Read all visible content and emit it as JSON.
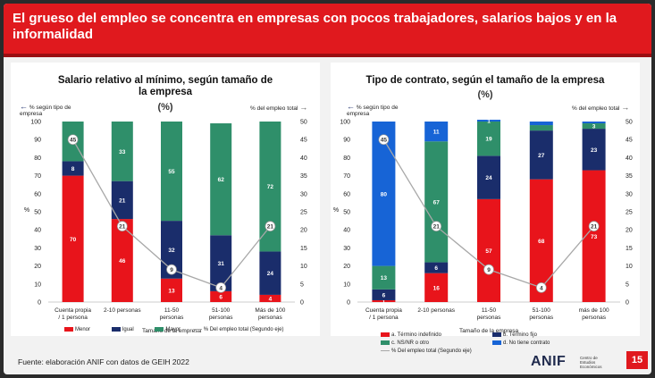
{
  "header": {
    "title": "El grueso del empleo se concentra en empresas con pocos trabajadores, salarios bajos y en la informalidad"
  },
  "source": "Fuente: elaboración ANIF con datos de GEIH 2022",
  "logo": {
    "name": "ANIF",
    "sub": "Centro de Estudios Económicos"
  },
  "page_number": "15",
  "colors": {
    "red": "#e8141b",
    "navy": "#1a2d6b",
    "green": "#2f8f6a",
    "blue": "#1764d6",
    "line": "#a8a8a8"
  },
  "left_panel": {
    "note_left": "% según tipo de empresa",
    "note_right": "% del empleo total",
    "unit": "(%)"
  },
  "right_panel": {
    "note_left": "% según tipo de empresa",
    "note_right": "% del empleo total",
    "unit": "(%)"
  },
  "chart_data": [
    {
      "type": "bar",
      "stacked": true,
      "title": "Salario relativo al mínimo, según tamaño de la empresa",
      "xlabel": "Tamaño de la empresa",
      "ylabel": "%",
      "ylim": [
        0,
        100
      ],
      "y2lim": [
        0,
        50
      ],
      "yticks": [
        "0",
        "10",
        "20",
        "30",
        "40",
        "50",
        "60",
        "70",
        "80",
        "90",
        "100"
      ],
      "y2ticks": [
        "0",
        "5",
        "10",
        "15",
        "20",
        "25",
        "30",
        "35",
        "40",
        "45",
        "50"
      ],
      "categories": [
        "Cuenta propia / 1 persona",
        "2-10 personas",
        "11-50 personas",
        "51-100 personas",
        "Más de 100 personas"
      ],
      "series": [
        {
          "name": "Menor",
          "color": "#e8141b",
          "values": [
            70,
            46,
            13,
            6,
            4
          ]
        },
        {
          "name": "Igual",
          "color": "#1a2d6b",
          "values": [
            8,
            21,
            32,
            31,
            24
          ]
        },
        {
          "name": "Mayor",
          "color": "#2f8f6a",
          "values": [
            22,
            33,
            55,
            62,
            72
          ]
        }
      ],
      "line": {
        "name": "% Del empleo total (Segundo eje)",
        "axis": "secondary",
        "values": [
          45,
          21,
          9,
          4,
          21
        ]
      }
    },
    {
      "type": "bar",
      "stacked": true,
      "title": "Tipo de contrato, según el tamaño de la empresa",
      "xlabel": "Tamaño de la empresa",
      "ylabel": "%",
      "ylim": [
        0,
        100
      ],
      "y2lim": [
        0,
        50
      ],
      "yticks": [
        "0",
        "10",
        "20",
        "30",
        "40",
        "50",
        "60",
        "70",
        "80",
        "90",
        "100"
      ],
      "y2ticks": [
        "0",
        "5",
        "10",
        "15",
        "20",
        "25",
        "30",
        "35",
        "40",
        "45",
        "50"
      ],
      "categories": [
        "Cuenta propia / 1 persona",
        "2-10 personas",
        "11-50 personas",
        "51-100 personas",
        "más de 100 personas"
      ],
      "series": [
        {
          "name": "a. Término indefinido",
          "color": "#e8141b",
          "values": [
            1,
            16,
            57,
            68,
            73
          ]
        },
        {
          "name": "b. Término fijo",
          "color": "#1a2d6b",
          "values": [
            6,
            6,
            24,
            27,
            23
          ]
        },
        {
          "name": "c. NS/NR o otro",
          "color": "#2f8f6a",
          "values": [
            13,
            67,
            19,
            3,
            3
          ]
        },
        {
          "name": "d. No tiene contrato",
          "color": "#1764d6",
          "values": [
            80,
            11,
            1,
            2,
            1
          ]
        }
      ],
      "labels": [
        [
          "1",
          "16",
          "57",
          "68",
          "73"
        ],
        [
          "6",
          "6",
          "24",
          "27",
          "23"
        ],
        [
          "13",
          "67",
          "19",
          "",
          "3"
        ],
        [
          "80",
          "11",
          "1",
          "",
          ""
        ]
      ],
      "line": {
        "name": "% Del empleo total (Segundo eje)",
        "axis": "secondary",
        "values": [
          45,
          21,
          9,
          4,
          21
        ]
      }
    }
  ]
}
